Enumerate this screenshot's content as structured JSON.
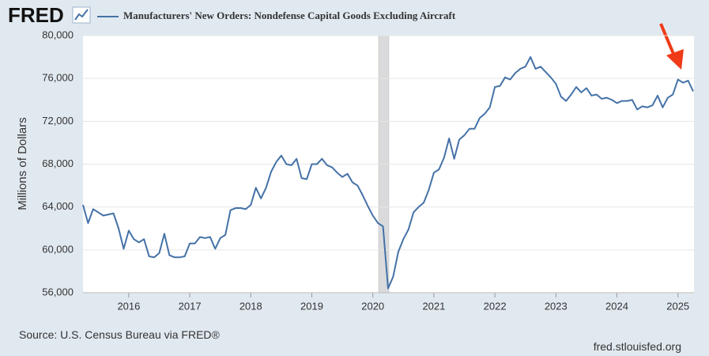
{
  "chart_data": {
    "type": "line",
    "brand": "FRED",
    "title": "Manufacturers' New Orders: Nondefense Capital Goods Excluding Aircraft",
    "y_label": "Millions of Dollars",
    "source": "Source: U.S. Census Bureau via FRED®",
    "site": "fred.stlouisfed.org",
    "categories": [
      null,
      null,
      null,
      null,
      null,
      null,
      null,
      null,
      null,
      "2016",
      null,
      null,
      null,
      null,
      null,
      null,
      null,
      null,
      null,
      null,
      null,
      "2017",
      null,
      null,
      null,
      null,
      null,
      null,
      null,
      null,
      null,
      null,
      null,
      "2018",
      null,
      null,
      null,
      null,
      null,
      null,
      null,
      null,
      null,
      null,
      null,
      "2019",
      null,
      null,
      null,
      null,
      null,
      null,
      null,
      null,
      null,
      null,
      null,
      "2020",
      null,
      null,
      null,
      null,
      null,
      null,
      null,
      null,
      null,
      null,
      null,
      "2021",
      null,
      null,
      null,
      null,
      null,
      null,
      null,
      null,
      null,
      null,
      null,
      "2022",
      null,
      null,
      null,
      null,
      null,
      null,
      null,
      null,
      null,
      null,
      null,
      "2023",
      null,
      null,
      null,
      null,
      null,
      null,
      null,
      null,
      null,
      null,
      null,
      "2024",
      null,
      null,
      null,
      null,
      null,
      null,
      null,
      null,
      null,
      null,
      null,
      "2025",
      null,
      null,
      null
    ],
    "series": [
      {
        "name": "Manufacturers' New Orders: Nondefense Capital Goods Excluding Aircraft",
        "color": "#4572a7",
        "values": [
          64200,
          62500,
          63800,
          63500,
          63200,
          63300,
          63400,
          62000,
          60100,
          61800,
          61000,
          60700,
          61000,
          59400,
          59300,
          59700,
          61500,
          59500,
          59300,
          59300,
          59400,
          60600,
          60600,
          61200,
          61100,
          61200,
          60100,
          61100,
          61400,
          63700,
          63900,
          63900,
          63800,
          64200,
          65800,
          64800,
          65800,
          67300,
          68200,
          68800,
          68000,
          67900,
          68500,
          66700,
          66600,
          68000,
          68000,
          68500,
          67900,
          67700,
          67200,
          66800,
          67100,
          66300,
          66000,
          65100,
          64100,
          63200,
          62500,
          62200,
          56400,
          57500,
          59800,
          61000,
          61900,
          63500,
          64000,
          64400,
          65600,
          67200,
          67500,
          68600,
          70400,
          68500,
          70300,
          70700,
          71300,
          71300,
          72300,
          72700,
          73300,
          75200,
          75300,
          76100,
          75900,
          76500,
          76900,
          77100,
          78000,
          76900,
          77100,
          76600,
          76100,
          75500,
          74300,
          73900,
          74500,
          75200,
          74700,
          75100,
          74400,
          74500,
          74100,
          74200,
          74000,
          73700,
          73900,
          73900,
          74000,
          73100,
          73400,
          73300,
          73500,
          74400,
          73300,
          74200,
          74500,
          75900,
          75600,
          75800,
          74800
        ]
      }
    ],
    "ylim": [
      56000,
      80000
    ],
    "yticks": [
      {
        "value": 56000,
        "label": "56,000"
      },
      {
        "value": 60000,
        "label": "60,000"
      },
      {
        "value": 64000,
        "label": "64,000"
      },
      {
        "value": 68000,
        "label": "68,000"
      },
      {
        "value": 72000,
        "label": "72,000"
      },
      {
        "value": 76000,
        "label": "76,000"
      },
      {
        "value": 80000,
        "label": "80,000"
      }
    ],
    "grid": true
  }
}
